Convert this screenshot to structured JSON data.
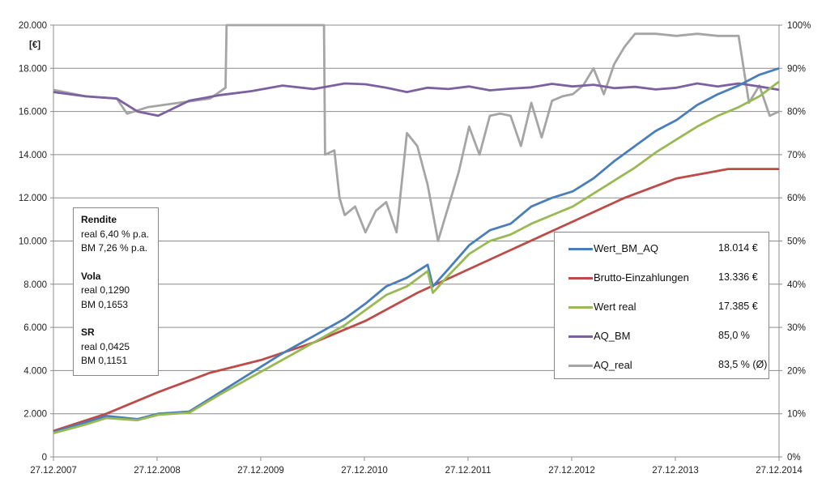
{
  "chart_data": {
    "type": "line",
    "xlabel": "",
    "ylabel": "[€]",
    "x_ticks": [
      "27.12.2007",
      "27.12.2008",
      "27.12.2009",
      "27.12.2010",
      "27.12.2011",
      "27.12.2012",
      "27.12.2013",
      "27.12.2014"
    ],
    "y_ticks": [
      "0",
      "2.000",
      "4.000",
      "6.000",
      "8.000",
      "10.000",
      "12.000",
      "14.000",
      "16.000",
      "18.000",
      "20.000"
    ],
    "y2_ticks": [
      "0%",
      "10%",
      "20%",
      "30%",
      "40%",
      "50%",
      "60%",
      "70%",
      "80%",
      "90%",
      "100%"
    ],
    "ylim": [
      0,
      20000
    ],
    "y2lim": [
      0,
      100
    ],
    "xlim": [
      2007.99,
      2014.99
    ],
    "grid": true,
    "legend_position": "right",
    "series": [
      {
        "name": "Wert_BM_AQ",
        "axis": "left",
        "color": "#4a7ebb",
        "x": [
          2007.99,
          2008.3,
          2008.5,
          2008.8,
          2009.0,
          2009.3,
          2009.6,
          2009.9,
          2010.2,
          2010.5,
          2010.8,
          2011.0,
          2011.2,
          2011.4,
          2011.6,
          2011.65,
          2011.8,
          2012.0,
          2012.2,
          2012.4,
          2012.6,
          2012.8,
          2013.0,
          2013.2,
          2013.4,
          2013.6,
          2013.8,
          2014.0,
          2014.2,
          2014.4,
          2014.6,
          2014.8,
          2014.99
        ],
        "y": [
          1150,
          1600,
          1900,
          1750,
          2000,
          2100,
          3000,
          3900,
          4800,
          5600,
          6400,
          7100,
          7900,
          8300,
          8900,
          7900,
          8700,
          9800,
          10500,
          10800,
          11600,
          12000,
          12300,
          12900,
          13700,
          14400,
          15100,
          15600,
          16300,
          16800,
          17200,
          17700,
          18000
        ]
      },
      {
        "name": "Brutto-Einzahlungen",
        "axis": "left",
        "color": "#be4b48",
        "x": [
          2007.99,
          2008.5,
          2009.0,
          2009.5,
          2010.0,
          2010.5,
          2011.0,
          2011.5,
          2012.0,
          2012.5,
          2013.0,
          2013.5,
          2014.0,
          2014.5,
          2014.99
        ],
        "y": [
          1200,
          2000,
          3000,
          3900,
          4500,
          5300,
          6300,
          7600,
          8700,
          9800,
          10900,
          12000,
          12900,
          13336,
          13336
        ]
      },
      {
        "name": "Wert real",
        "axis": "left",
        "color": "#98b954",
        "x": [
          2007.99,
          2008.3,
          2008.5,
          2008.8,
          2009.0,
          2009.3,
          2009.6,
          2009.9,
          2010.2,
          2010.5,
          2010.8,
          2011.0,
          2011.2,
          2011.4,
          2011.6,
          2011.65,
          2011.8,
          2012.0,
          2012.2,
          2012.4,
          2012.6,
          2012.8,
          2013.0,
          2013.2,
          2013.4,
          2013.6,
          2013.8,
          2014.0,
          2014.2,
          2014.4,
          2014.6,
          2014.8,
          2014.99
        ],
        "y": [
          1100,
          1500,
          1800,
          1700,
          1950,
          2050,
          2900,
          3700,
          4500,
          5300,
          6100,
          6800,
          7500,
          7900,
          8600,
          7600,
          8400,
          9400,
          10000,
          10300,
          10800,
          11200,
          11600,
          12200,
          12800,
          13400,
          14100,
          14700,
          15300,
          15800,
          16200,
          16700,
          17385
        ]
      },
      {
        "name": "AQ_BM",
        "axis": "right",
        "color": "#7d60a0",
        "x": [
          2007.99,
          2008.3,
          2008.6,
          2008.8,
          2009.0,
          2009.3,
          2009.6,
          2009.9,
          2010.2,
          2010.5,
          2010.8,
          2011.0,
          2011.2,
          2011.4,
          2011.6,
          2011.8,
          2012.0,
          2012.2,
          2012.4,
          2012.6,
          2012.8,
          2013.0,
          2013.2,
          2013.4,
          2013.6,
          2013.8,
          2014.0,
          2014.2,
          2014.4,
          2014.6,
          2014.8,
          2014.99
        ],
        "y": [
          84.5,
          83.5,
          83.0,
          80.0,
          79.0,
          82.5,
          83.8,
          84.7,
          86.0,
          85.2,
          86.5,
          86.3,
          85.5,
          84.5,
          85.5,
          85.2,
          85.8,
          84.9,
          85.3,
          85.6,
          86.4,
          85.8,
          86.2,
          85.4,
          85.7,
          85.1,
          85.5,
          86.5,
          85.8,
          86.5,
          85.8,
          85.0
        ]
      },
      {
        "name": "AQ_real",
        "axis": "right",
        "color": "#a5a5a5",
        "x": [
          2007.99,
          2008.3,
          2008.6,
          2008.7,
          2008.9,
          2009.2,
          2009.5,
          2009.65,
          2009.66,
          2010.2,
          2010.6,
          2010.61,
          2010.7,
          2010.75,
          2010.8,
          2010.9,
          2011.0,
          2011.1,
          2011.2,
          2011.3,
          2011.4,
          2011.5,
          2011.6,
          2011.7,
          2011.8,
          2011.9,
          2012.0,
          2012.1,
          2012.2,
          2012.3,
          2012.4,
          2012.5,
          2012.6,
          2012.7,
          2012.8,
          2012.9,
          2013.0,
          2013.1,
          2013.2,
          2013.3,
          2013.4,
          2013.5,
          2013.6,
          2013.7,
          2013.8,
          2014.0,
          2014.2,
          2014.4,
          2014.6,
          2014.7,
          2014.8,
          2014.9,
          2014.99
        ],
        "y": [
          85.0,
          83.5,
          83.0,
          79.5,
          81.0,
          82.0,
          83.0,
          85.5,
          100,
          100,
          100,
          70.0,
          71.0,
          60.0,
          56.0,
          58.0,
          52.0,
          57.0,
          59.0,
          52.0,
          75.0,
          72.0,
          63.0,
          50.0,
          58.0,
          66.0,
          76.5,
          70.0,
          79.0,
          79.5,
          79.0,
          72.0,
          82.0,
          74.0,
          82.5,
          83.5,
          84.0,
          86.0,
          90.0,
          84.0,
          91.0,
          95.0,
          98.0,
          98.0,
          98.0,
          97.5,
          98.0,
          97.5,
          97.5,
          82.0,
          86.0,
          79.0,
          80.0
        ]
      }
    ]
  },
  "stats_box": {
    "rendite_title": "Rendite",
    "rendite_real": "real 6,40 % p.a.",
    "rendite_bm": "BM 7,26 % p.a.",
    "vola_title": "Vola",
    "vola_real": "real 0,1290",
    "vola_bm": "BM 0,1653",
    "sr_title": "SR",
    "sr_real": "real 0,0425",
    "sr_bm": "BM 0,1151"
  },
  "legend": [
    {
      "name": "Wert_BM_AQ",
      "value": "18.014 €",
      "color": "#4a7ebb"
    },
    {
      "name": "Brutto-Einzahlungen",
      "value": "13.336 €",
      "color": "#be4b48"
    },
    {
      "name": "Wert real",
      "value": "17.385 €",
      "color": "#98b954"
    },
    {
      "name": "AQ_BM",
      "value": "85,0 %",
      "color": "#7d60a0"
    },
    {
      "name": "AQ_real",
      "value": "83,5 % (Ø)",
      "color": "#a5a5a5"
    }
  ]
}
